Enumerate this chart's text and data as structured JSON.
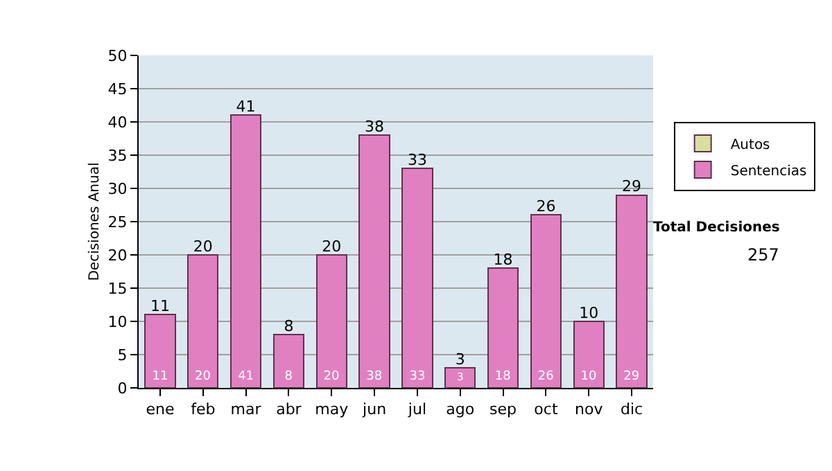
{
  "chart_data": {
    "type": "bar",
    "ylabel": "Decisiones Anual",
    "categories": [
      "ene",
      "feb",
      "mar",
      "abr",
      "may",
      "jun",
      "jul",
      "ago",
      "sep",
      "oct",
      "nov",
      "dic"
    ],
    "series": [
      {
        "name": "Sentencias",
        "color": "#e080c0",
        "values": [
          11,
          20,
          41,
          8,
          20,
          38,
          33,
          3,
          18,
          26,
          10,
          29
        ]
      },
      {
        "name": "Autos",
        "color": "#d8e0a0",
        "values": [
          null,
          null,
          null,
          null,
          null,
          null,
          null,
          null,
          null,
          null,
          null,
          null
        ]
      }
    ],
    "stacked": true,
    "totals": [
      "11",
      "20",
      "41",
      "8",
      "20",
      "38",
      "33",
      "3",
      "18",
      "26",
      "10",
      "29"
    ],
    "ylim": [
      0,
      50
    ],
    "yticks": [
      0,
      5,
      10,
      15,
      20,
      25,
      30,
      35,
      40,
      45,
      50
    ],
    "grid": "y",
    "legend": "right",
    "data_labels": true,
    "annotations": [
      "Total Decisiones",
      "257"
    ]
  }
}
